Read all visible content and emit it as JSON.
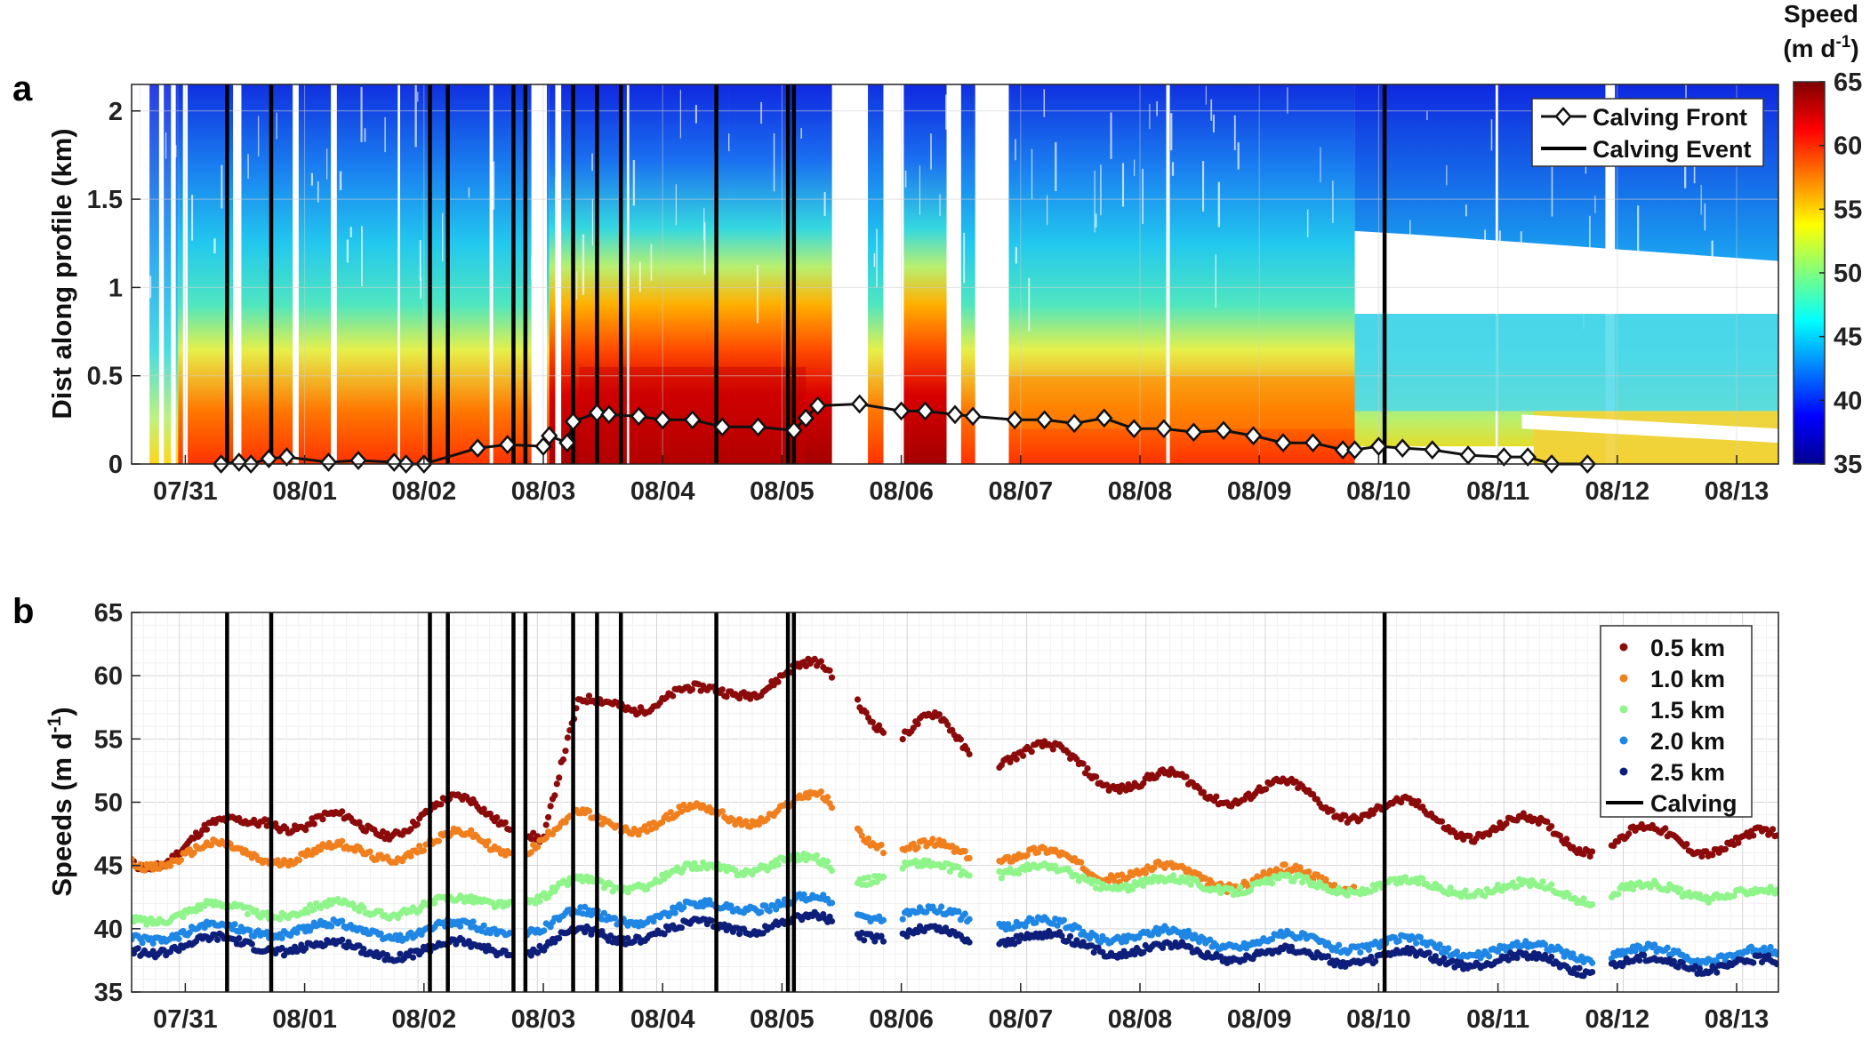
{
  "chart_data": [
    {
      "panel": "a",
      "type": "heatmap",
      "ylabel": "Dist along profile (km)",
      "xlabel": "",
      "x_range_days": [
        -0.45,
        13.35
      ],
      "ylim": [
        0,
        2.15
      ],
      "xtick_labels": [
        "07/31",
        "08/01",
        "08/02",
        "08/03",
        "08/04",
        "08/05",
        "08/06",
        "08/07",
        "08/08",
        "08/09",
        "08/10",
        "08/11",
        "08/12",
        "08/13"
      ],
      "ytick_values": [
        0,
        0.5,
        1,
        1.5,
        2
      ],
      "ytick_labels": [
        "0",
        "0.5",
        "1",
        "1.5",
        "2"
      ],
      "colorbar": {
        "title_line1": "Speed",
        "title_line2": "(m d",
        "title_sup": "-1",
        "title_close": ")",
        "range": [
          35,
          65
        ],
        "tick_values": [
          35,
          40,
          45,
          50,
          55,
          60,
          65
        ],
        "tick_labels": [
          "35",
          "40",
          "45",
          "50",
          "55",
          "60",
          "65"
        ]
      },
      "legend": [
        {
          "label": "Calving Front",
          "style": "line-diamond"
        },
        {
          "label": "Calving Event",
          "style": "line"
        }
      ],
      "calving_front": {
        "x": [
          0.3,
          0.45,
          0.55,
          0.7,
          0.85,
          1.2,
          1.45,
          1.75,
          1.85,
          2.0,
          2.45,
          2.7,
          3.0,
          3.05,
          3.2,
          3.25,
          3.45,
          3.55,
          3.8,
          4.0,
          4.25,
          4.5,
          4.8,
          5.1,
          5.2,
          5.3,
          5.65,
          6.0,
          6.2,
          6.45,
          6.6,
          6.95,
          7.2,
          7.45,
          7.7,
          7.95,
          8.2,
          8.45,
          8.7,
          8.95,
          9.2,
          9.45,
          9.7,
          9.8,
          10.0,
          10.2,
          10.45,
          10.75,
          11.05,
          11.25,
          11.45,
          11.75
        ],
        "y": [
          0.0,
          0.01,
          0.0,
          0.03,
          0.04,
          0.01,
          0.02,
          0.01,
          0.0,
          0.0,
          0.09,
          0.11,
          0.1,
          0.16,
          0.12,
          0.24,
          0.29,
          0.28,
          0.27,
          0.25,
          0.25,
          0.21,
          0.21,
          0.19,
          0.26,
          0.33,
          0.34,
          0.3,
          0.3,
          0.28,
          0.27,
          0.25,
          0.25,
          0.23,
          0.26,
          0.2,
          0.2,
          0.18,
          0.19,
          0.16,
          0.12,
          0.12,
          0.08,
          0.08,
          0.1,
          0.09,
          0.08,
          0.05,
          0.04,
          0.04,
          0.0,
          0.0
        ]
      },
      "calving_events": [
        0.35,
        0.72,
        2.05,
        2.2,
        2.75,
        2.85,
        3.25,
        3.45,
        3.65,
        4.45,
        5.05,
        5.1,
        10.05
      ]
    },
    {
      "panel": "b",
      "type": "scatter",
      "ylabel": "Speeds (m d",
      "ylabel_sup": "-1",
      "ylabel_close": ")",
      "xlabel": "",
      "x_range_days": [
        -0.45,
        13.35
      ],
      "ylim": [
        35,
        65
      ],
      "xtick_labels": [
        "07/31",
        "08/01",
        "08/02",
        "08/03",
        "08/04",
        "08/05",
        "08/06",
        "08/07",
        "08/08",
        "08/09",
        "08/10",
        "08/11",
        "08/12",
        "08/13"
      ],
      "ytick_values": [
        35,
        40,
        45,
        50,
        55,
        60,
        65
      ],
      "ytick_labels": [
        "35",
        "40",
        "45",
        "50",
        "55",
        "60",
        "65"
      ],
      "legend": [
        {
          "label": "0.5 km",
          "color": "#8b0a0a",
          "style": "dot"
        },
        {
          "label": "1.0 km",
          "color": "#f07f1e",
          "style": "dot"
        },
        {
          "label": "1.5 km",
          "color": "#8ff58a",
          "style": "dot"
        },
        {
          "label": "2.0 km",
          "color": "#1f86e4",
          "style": "dot"
        },
        {
          "label": "2.5 km",
          "color": "#0d1f7a",
          "style": "dot"
        },
        {
          "label": "Calving",
          "color": "#000000",
          "style": "line"
        }
      ],
      "series": [
        {
          "name": "0.5 km",
          "color": "#8b0a0a",
          "x": [
            -0.45,
            0,
            0.3,
            0.7,
            1.0,
            1.5,
            2.0,
            2.4,
            2.8,
            3.0,
            3.3,
            3.6,
            4.0,
            4.3,
            4.7,
            5.0,
            5.3,
            5.6,
            6.0,
            6.3,
            6.6,
            6.9,
            7.5,
            8.0,
            8.5,
            9.0,
            9.5,
            10.0,
            10.5,
            11.0,
            11.5,
            11.8,
            12.0,
            12.5,
            13.0,
            13.35
          ],
          "y": [
            45.5,
            46.5,
            47.5,
            49.5,
            48,
            48,
            49,
            49.5,
            49,
            47,
            57,
            58.5,
            58,
            58,
            59.5,
            60,
            60,
            59,
            55,
            56,
            54,
            54,
            53,
            51.5,
            51,
            51,
            50,
            49.5,
            48.5,
            48,
            47.5,
            47,
            47,
            47,
            47,
            46.5
          ]
        },
        {
          "name": "1.0 km",
          "color": "#f07f1e",
          "x": [
            -0.45,
            0.3,
            0.7,
            1.0,
            1.5,
            2.0,
            2.4,
            2.8,
            3.0,
            3.3,
            3.6,
            4.0,
            4.3,
            4.7,
            5.0,
            5.3,
            5.6,
            6.0,
            6.3,
            6.6,
            6.9,
            7.5,
            8.0,
            8.5,
            9.0,
            9.3,
            9.8
          ],
          "y": [
            45.5,
            46,
            46,
            45.8,
            46,
            46.5,
            47,
            46.5,
            47,
            48.5,
            48.5,
            48.5,
            49,
            49,
            49.5,
            50,
            48.5,
            46,
            46,
            46,
            46,
            45,
            44.5,
            44,
            44,
            44,
            43.8
          ]
        },
        {
          "name": "1.5 km",
          "color": "#8ff58a",
          "x": [
            -0.45,
            0.3,
            0.7,
            1.0,
            1.5,
            2.0,
            2.4,
            2.8,
            3.0,
            3.3,
            3.6,
            4.0,
            4.3,
            4.7,
            5.0,
            5.3,
            5.6,
            6.0,
            6.3,
            6.6,
            6.9,
            7.5,
            8.0,
            8.5,
            9.0,
            9.5,
            10.0,
            10.5,
            11.0,
            11.5,
            11.8,
            12.0,
            12.5,
            13.0,
            13.35
          ],
          "y": [
            41,
            41.5,
            41.5,
            41.5,
            41.5,
            41.8,
            42,
            42.5,
            42.5,
            43.5,
            43.5,
            44,
            44.5,
            45,
            45.5,
            45,
            44,
            45,
            44.5,
            44.5,
            44.8,
            44,
            43.5,
            43.5,
            43.5,
            43.5,
            43.3,
            43.3,
            43.2,
            43,
            42.5,
            43,
            43,
            42.8,
            42.5
          ]
        },
        {
          "name": "2.0 km",
          "color": "#1f86e4",
          "x": [
            -0.45,
            0.3,
            0.7,
            1.0,
            1.5,
            2.0,
            2.4,
            2.8,
            3.0,
            3.3,
            3.6,
            4.0,
            4.3,
            4.7,
            5.0,
            5.3,
            5.6,
            6.0,
            6.3,
            6.6,
            6.9,
            7.5,
            8.0,
            8.5,
            9.0,
            9.5,
            10.0,
            10.5,
            11.0,
            11.5,
            11.8,
            12.0,
            12.5,
            13.0,
            13.35
          ],
          "y": [
            39.5,
            39.8,
            40,
            40,
            39.8,
            39.8,
            40,
            40,
            40,
            41,
            41,
            41,
            41.5,
            42,
            42,
            42,
            41.5,
            41,
            41,
            41,
            40.5,
            39.8,
            39.5,
            39.2,
            39,
            39,
            38.8,
            38.5,
            38.3,
            38.3,
            38,
            38,
            38,
            38,
            37.8
          ]
        },
        {
          "name": "2.5 km",
          "color": "#0d1f7a",
          "x": [
            -0.45,
            0.3,
            0.7,
            1.0,
            1.5,
            2.0,
            2.4,
            2.8,
            3.0,
            3.3,
            3.6,
            4.0,
            4.3,
            4.7,
            5.0,
            5.3,
            5.6,
            6.0,
            6.3,
            6.6,
            6.9,
            7.5,
            8.0,
            8.5,
            9.0,
            9.5,
            10.0,
            10.5,
            11.0,
            11.5,
            11.8,
            12.0,
            12.5,
            13.0,
            13.35
          ],
          "y": [
            38.5,
            38.8,
            38.8,
            38.5,
            38.3,
            38.3,
            38.5,
            38.5,
            38.5,
            39.5,
            39.5,
            39.8,
            40,
            40.3,
            40.5,
            40.5,
            40,
            39.5,
            39.5,
            39.3,
            39.3,
            38.8,
            38.3,
            38.2,
            38,
            37.8,
            37.7,
            37.6,
            37.5,
            37.3,
            37,
            37.2,
            37.2,
            37.3,
            37
          ]
        }
      ],
      "calving_events": [
        0.35,
        0.72,
        2.05,
        2.2,
        2.75,
        2.85,
        3.25,
        3.45,
        3.65,
        4.45,
        5.05,
        5.1,
        10.05
      ]
    }
  ]
}
